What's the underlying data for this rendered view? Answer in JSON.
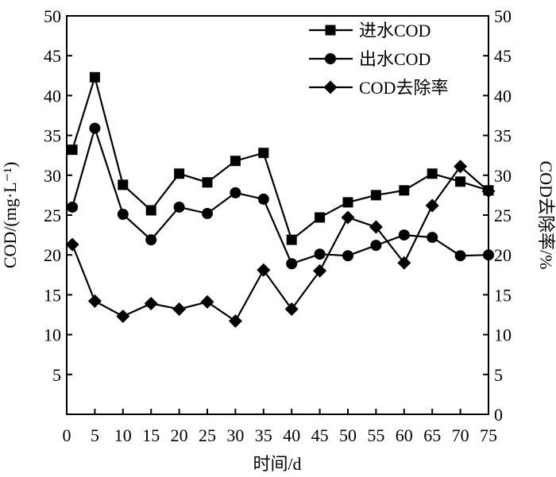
{
  "chart_data": {
    "type": "line",
    "xlabel": "时间/d",
    "ylabel_left": "COD/(mg·L⁻¹)",
    "ylabel_right": "COD去除率/%",
    "x_ticks": [
      "0",
      "5",
      "10",
      "15",
      "20",
      "25",
      "30",
      "35",
      "40",
      "45",
      "50",
      "55",
      "60",
      "65",
      "70",
      "75"
    ],
    "y_ticks_left": [
      "5",
      "10",
      "15",
      "20",
      "25",
      "30",
      "35",
      "40",
      "45",
      "50"
    ],
    "y_ticks_right": [
      "0",
      "5",
      "10",
      "15",
      "20",
      "25",
      "30",
      "35",
      "40",
      "45",
      "50"
    ],
    "xlim": [
      0,
      75
    ],
    "ylim_left": [
      0,
      50
    ],
    "ylim_right": [
      0,
      50
    ],
    "grid": false,
    "legend_position": "top-right",
    "series": [
      {
        "name": "进水COD",
        "marker": "square",
        "axis": "left",
        "x": [
          1,
          5,
          10,
          15,
          20,
          25,
          30,
          35,
          40,
          45,
          50,
          55,
          60,
          65,
          70,
          75
        ],
        "y": [
          33.2,
          42.3,
          28.8,
          25.6,
          30.2,
          29.1,
          31.8,
          32.8,
          21.9,
          24.7,
          26.6,
          27.5,
          28.1,
          30.2,
          29.2,
          28.1
        ]
      },
      {
        "name": "出水COD",
        "marker": "circle",
        "axis": "left",
        "x": [
          1,
          5,
          10,
          15,
          20,
          25,
          30,
          35,
          40,
          45,
          50,
          55,
          60,
          65,
          70,
          75
        ],
        "y": [
          26.0,
          35.9,
          25.1,
          21.9,
          26.0,
          25.2,
          27.8,
          27.0,
          18.9,
          20.1,
          19.9,
          21.2,
          22.5,
          22.2,
          19.9,
          20.0
        ]
      },
      {
        "name": "COD去除率",
        "marker": "diamond",
        "axis": "right",
        "x": [
          1,
          5,
          10,
          15,
          20,
          25,
          30,
          35,
          40,
          45,
          50,
          55,
          60,
          65,
          70,
          75
        ],
        "y": [
          21.3,
          14.2,
          12.3,
          13.9,
          13.2,
          14.1,
          11.7,
          18.1,
          13.2,
          18.0,
          24.7,
          23.5,
          19.0,
          26.2,
          31.1,
          28.0
        ]
      }
    ]
  }
}
